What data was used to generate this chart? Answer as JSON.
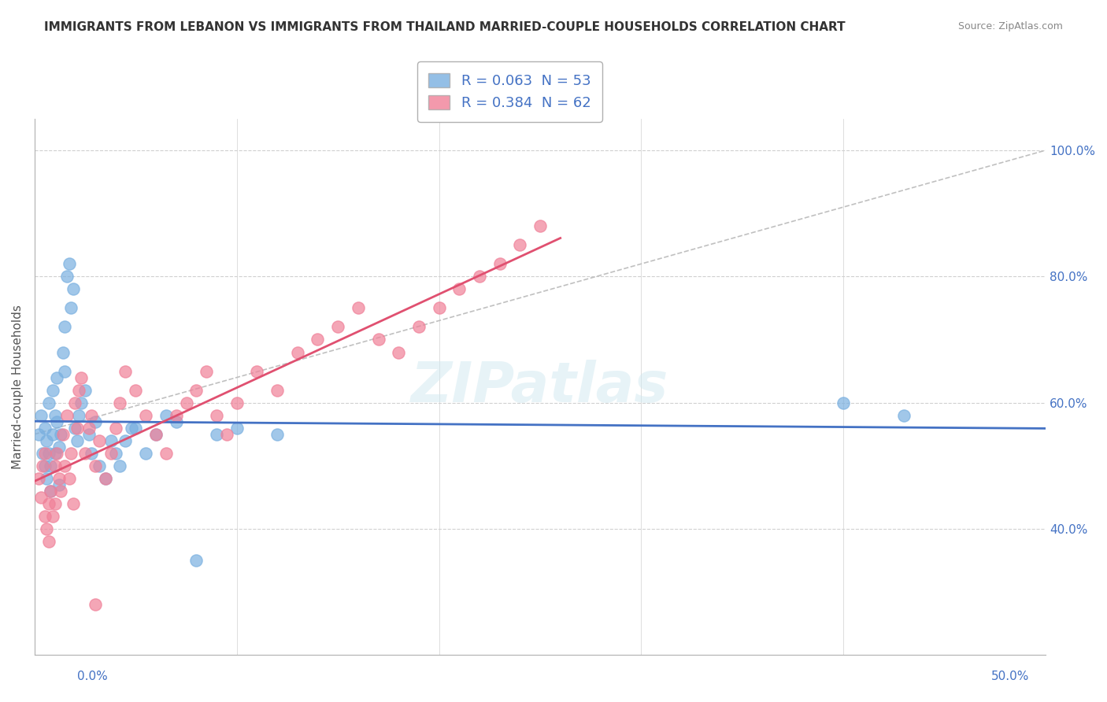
{
  "title": "IMMIGRANTS FROM LEBANON VS IMMIGRANTS FROM THAILAND MARRIED-COUPLE HOUSEHOLDS CORRELATION CHART",
  "source": "Source: ZipAtlas.com",
  "ylabel": "Married-couple Households",
  "watermark": "ZIPatlas",
  "lebanon_color": "#7ab0e0",
  "thailand_color": "#f08098",
  "lebanon_line_color": "#4472c4",
  "thailand_line_color": "#e05070",
  "diagonal_color": "#c0c0c0",
  "xlim": [
    0.0,
    0.5
  ],
  "ylim": [
    0.2,
    1.05
  ],
  "legend_entries": [
    {
      "label": "Immigrants from Lebanon",
      "R": "0.063",
      "N": "53"
    },
    {
      "label": "Immigrants from Thailand",
      "R": "0.384",
      "N": "62"
    }
  ],
  "lebanon_x": [
    0.002,
    0.003,
    0.004,
    0.005,
    0.005,
    0.006,
    0.006,
    0.007,
    0.007,
    0.008,
    0.008,
    0.009,
    0.009,
    0.01,
    0.01,
    0.011,
    0.011,
    0.012,
    0.012,
    0.013,
    0.014,
    0.015,
    0.015,
    0.016,
    0.017,
    0.018,
    0.019,
    0.02,
    0.021,
    0.022,
    0.023,
    0.025,
    0.027,
    0.028,
    0.03,
    0.032,
    0.035,
    0.038,
    0.04,
    0.042,
    0.045,
    0.048,
    0.05,
    0.055,
    0.06,
    0.065,
    0.07,
    0.08,
    0.09,
    0.1,
    0.12,
    0.4,
    0.43
  ],
  "lebanon_y": [
    0.55,
    0.58,
    0.52,
    0.5,
    0.56,
    0.48,
    0.54,
    0.52,
    0.6,
    0.46,
    0.5,
    0.62,
    0.55,
    0.58,
    0.52,
    0.64,
    0.57,
    0.53,
    0.47,
    0.55,
    0.68,
    0.72,
    0.65,
    0.8,
    0.82,
    0.75,
    0.78,
    0.56,
    0.54,
    0.58,
    0.6,
    0.62,
    0.55,
    0.52,
    0.57,
    0.5,
    0.48,
    0.54,
    0.52,
    0.5,
    0.54,
    0.56,
    0.56,
    0.52,
    0.55,
    0.58,
    0.57,
    0.35,
    0.55,
    0.56,
    0.55,
    0.6,
    0.58
  ],
  "thailand_x": [
    0.002,
    0.003,
    0.004,
    0.005,
    0.005,
    0.006,
    0.007,
    0.007,
    0.008,
    0.009,
    0.01,
    0.01,
    0.011,
    0.012,
    0.013,
    0.014,
    0.015,
    0.016,
    0.017,
    0.018,
    0.019,
    0.02,
    0.021,
    0.022,
    0.023,
    0.025,
    0.027,
    0.028,
    0.03,
    0.032,
    0.035,
    0.038,
    0.04,
    0.042,
    0.045,
    0.05,
    0.055,
    0.06,
    0.065,
    0.07,
    0.075,
    0.08,
    0.085,
    0.09,
    0.095,
    0.1,
    0.11,
    0.12,
    0.13,
    0.14,
    0.15,
    0.16,
    0.17,
    0.18,
    0.19,
    0.2,
    0.21,
    0.22,
    0.23,
    0.24,
    0.25,
    0.03
  ],
  "thailand_y": [
    0.48,
    0.45,
    0.5,
    0.42,
    0.52,
    0.4,
    0.44,
    0.38,
    0.46,
    0.42,
    0.5,
    0.44,
    0.52,
    0.48,
    0.46,
    0.55,
    0.5,
    0.58,
    0.48,
    0.52,
    0.44,
    0.6,
    0.56,
    0.62,
    0.64,
    0.52,
    0.56,
    0.58,
    0.5,
    0.54,
    0.48,
    0.52,
    0.56,
    0.6,
    0.65,
    0.62,
    0.58,
    0.55,
    0.52,
    0.58,
    0.6,
    0.62,
    0.65,
    0.58,
    0.55,
    0.6,
    0.65,
    0.62,
    0.68,
    0.7,
    0.72,
    0.75,
    0.7,
    0.68,
    0.72,
    0.75,
    0.78,
    0.8,
    0.82,
    0.85,
    0.88,
    0.28
  ]
}
